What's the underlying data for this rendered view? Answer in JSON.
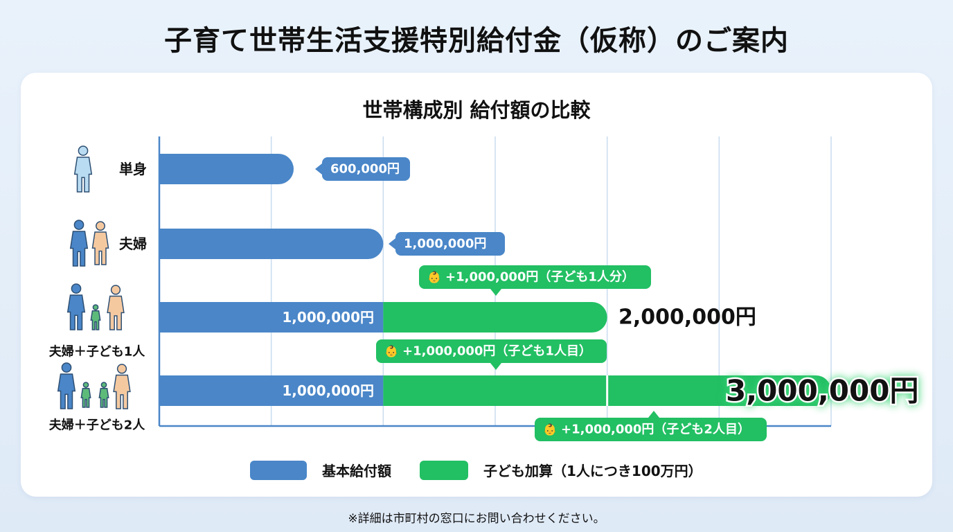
{
  "title": "子育て世帯生活支援特別給付金（仮称）のご案内",
  "footnote": "※詳細は市町村の窓口にお問い合わせください。",
  "colors": {
    "base": "#4a86c8",
    "child": "#22bf63",
    "grid": "#c9dcef",
    "axis": "#4a86c8"
  },
  "chart_data": {
    "type": "bar",
    "orientation": "horizontal",
    "stacked": true,
    "title": "世帯構成別 給付額の比較",
    "xlim": [
      0,
      3000000
    ],
    "grid_step": 500000,
    "grid": true,
    "legend_position": "bottom",
    "categories": [
      {
        "label": "単身",
        "icon": "single-person-icon"
      },
      {
        "label": "夫婦",
        "icon": "couple-icon"
      },
      {
        "label": "夫婦＋子ども1人",
        "icon": "family-one-child-icon"
      },
      {
        "label": "夫婦＋子ども2人",
        "icon": "family-two-children-icon"
      }
    ],
    "series": [
      {
        "name": "基本給付額",
        "values": [
          600000,
          1000000,
          1000000,
          1000000
        ]
      },
      {
        "name": "子ども加算（1人につき100万円）",
        "values": [
          0,
          0,
          1000000,
          2000000
        ]
      }
    ],
    "labels": {
      "single_value": "600,000円",
      "couple_value": "1,000,000円",
      "family1_base": "1,000,000円",
      "family1_child": "+1,000,000円（子ども1人分）",
      "family1_total": "2,000,000円",
      "family2_base": "1,000,000円",
      "family2_child1": "+1,000,000円（子ども1人目）",
      "family2_child2": "+1,000,000円（子ども2人目）",
      "family2_total": "3,000,000円"
    }
  }
}
